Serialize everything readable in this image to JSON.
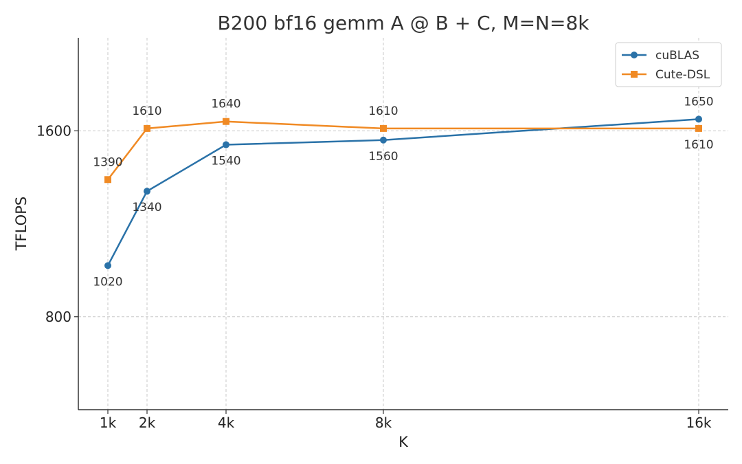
{
  "chart_data": {
    "type": "line",
    "title": "B200 bf16 gemm A @ B + C, M=N=8k",
    "xlabel": "K",
    "ylabel": "TFLOPS",
    "x": [
      1,
      2,
      4,
      8,
      16
    ],
    "x_tick_labels": [
      "1k",
      "2k",
      "4k",
      "8k",
      "16k"
    ],
    "y_ticks": [
      800,
      1600
    ],
    "ylim": [
      400,
      2000
    ],
    "grid": true,
    "legend_position": "top-right",
    "series": [
      {
        "name": "cuBLAS",
        "color": "#2a72a8",
        "marker": "circle",
        "values": [
          1020,
          1340,
          1540,
          1560,
          1650
        ],
        "labels": [
          "1020",
          "1340",
          "1540",
          "1560",
          "1650"
        ]
      },
      {
        "name": "Cute-DSL",
        "color": "#f08a24",
        "marker": "square",
        "values": [
          1390,
          1610,
          1640,
          1610,
          1610
        ],
        "labels": [
          "1390",
          "1610",
          "1640",
          "1610",
          "1610"
        ]
      }
    ]
  }
}
